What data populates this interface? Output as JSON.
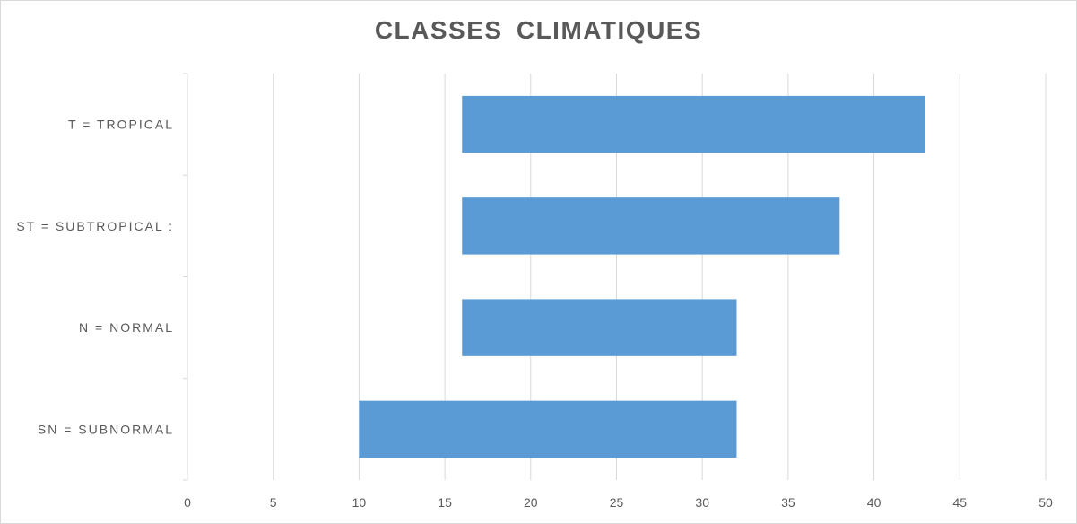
{
  "chart_data": {
    "type": "bar",
    "orientation": "horizontal",
    "title": "CLASSES CLIMATIQUES",
    "categories": [
      "T = TROPICAL",
      "ST = SUBTROPICAL :",
      "N = NORMAL",
      "SN = SUBNORMAL"
    ],
    "series": [
      {
        "start": [
          16,
          16,
          16,
          10
        ],
        "end": [
          43,
          38,
          32,
          32
        ]
      }
    ],
    "xlim": [
      0,
      50
    ],
    "xticks": [
      "0",
      "5",
      "10",
      "15",
      "20",
      "25",
      "30",
      "35",
      "40",
      "45",
      "50"
    ],
    "grid": true,
    "bar_color": "#5b9bd5",
    "grid_color": "#d9d9d9",
    "text_color": "#595959"
  }
}
